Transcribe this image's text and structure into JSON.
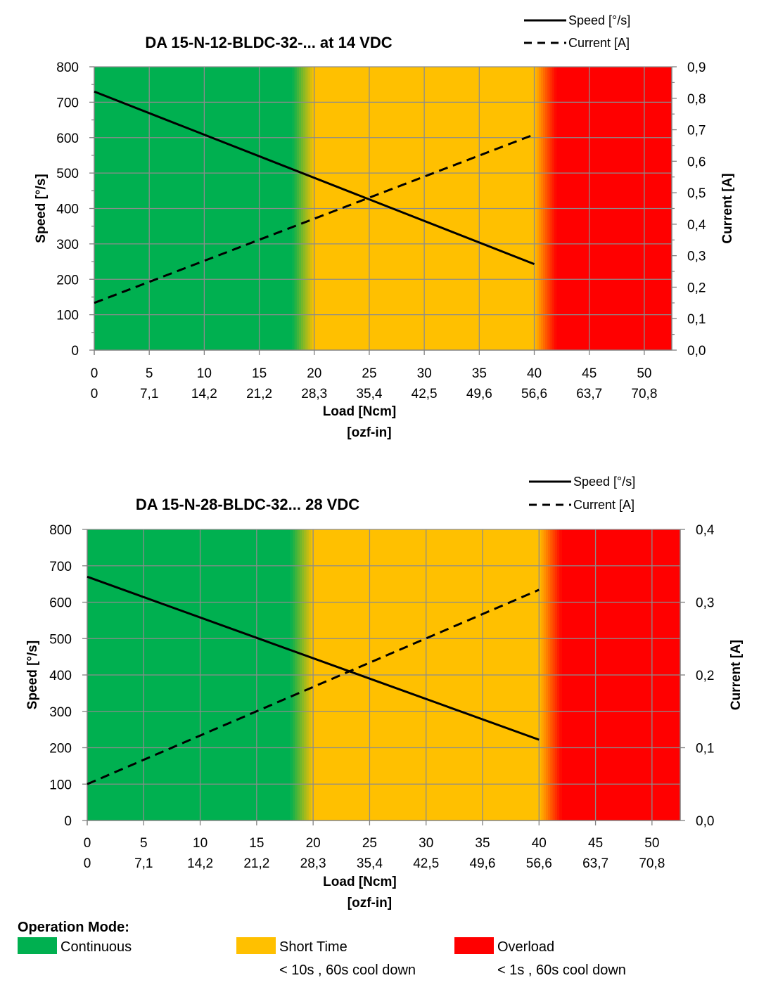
{
  "chart_data": [
    {
      "type": "line",
      "title": "DA 15-N-12-BLDC-32-... at 14 VDC",
      "xlabel": "Load [Ncm]",
      "xlabel2": "[ozf-in]",
      "ylabel": "Speed [°/s]",
      "y2label": "Current [A]",
      "x_ticks": [
        "0",
        "5",
        "10",
        "15",
        "20",
        "25",
        "30",
        "35",
        "40",
        "45",
        "50"
      ],
      "x2_ticks": [
        "0",
        "7,1",
        "14,2",
        "21,2",
        "28,3",
        "35,4",
        "42,5",
        "49,6",
        "56,6",
        "63,7",
        "70,8"
      ],
      "y_ticks": [
        "0",
        "100",
        "200",
        "300",
        "400",
        "500",
        "600",
        "700",
        "800"
      ],
      "y2_ticks": [
        "0,0",
        "0,1",
        "0,2",
        "0,3",
        "0,4",
        "0,5",
        "0,6",
        "0,7",
        "0,8",
        "0,9"
      ],
      "xlim": [
        0,
        52.5
      ],
      "ylim": [
        0,
        800
      ],
      "y2lim": [
        0,
        0.9
      ],
      "y_minor_ticks": true,
      "y2_minor_ticks": true,
      "grid": true,
      "legend_position": "top-right",
      "zones": [
        {
          "mode": "continuous",
          "from": 0,
          "to": 18
        },
        {
          "mode": "short_time",
          "from": 20,
          "to": 40
        },
        {
          "mode": "overload",
          "from": 42,
          "to": 52.5
        }
      ],
      "series": [
        {
          "name": "Speed [°/s]",
          "axis": "left",
          "style": "solid",
          "x": [
            0,
            40
          ],
          "y": [
            730,
            243
          ]
        },
        {
          "name": "Current [A]",
          "axis": "right",
          "style": "dashed",
          "x": [
            0,
            40
          ],
          "y": [
            0.15,
            0.685
          ]
        }
      ]
    },
    {
      "type": "line",
      "title": "DA 15-N-28-BLDC-32... 28 VDC",
      "xlabel": "Load [Ncm]",
      "xlabel2": "[ozf-in]",
      "ylabel": "Speed [°/s]",
      "y2label": "Current [A]",
      "x_ticks": [
        "0",
        "5",
        "10",
        "15",
        "20",
        "25",
        "30",
        "35",
        "40",
        "45",
        "50"
      ],
      "x2_ticks": [
        "0",
        "7,1",
        "14,2",
        "21,2",
        "28,3",
        "35,4",
        "42,5",
        "49,6",
        "56,6",
        "63,7",
        "70,8"
      ],
      "y_ticks": [
        "0",
        "100",
        "200",
        "300",
        "400",
        "500",
        "600",
        "700",
        "800"
      ],
      "y2_ticks": [
        "0,0",
        "0,1",
        "0,2",
        "0,3",
        "0,4"
      ],
      "xlim": [
        0,
        52.5
      ],
      "ylim": [
        0,
        800
      ],
      "y2lim": [
        0,
        0.4
      ],
      "y_minor_ticks": false,
      "y2_minor_ticks": false,
      "grid": true,
      "legend_position": "top-right",
      "zones": [
        {
          "mode": "continuous",
          "from": 0,
          "to": 18
        },
        {
          "mode": "short_time",
          "from": 20,
          "to": 40
        },
        {
          "mode": "overload",
          "from": 42,
          "to": 52.5
        }
      ],
      "series": [
        {
          "name": "Speed [°/s]",
          "axis": "left",
          "style": "solid",
          "x": [
            0,
            40
          ],
          "y": [
            670,
            222
          ]
        },
        {
          "name": "Current [A]",
          "axis": "right",
          "style": "dashed",
          "x": [
            0,
            40
          ],
          "y": [
            0.05,
            0.317
          ]
        }
      ]
    }
  ],
  "operation_mode": {
    "heading": "Operation Mode:",
    "modes": [
      {
        "key": "continuous",
        "label": "Continuous",
        "desc": "",
        "color": "#00b050"
      },
      {
        "key": "short_time",
        "label": "Short Time",
        "desc": "< 10s , 60s cool down",
        "color": "#ffc000"
      },
      {
        "key": "overload",
        "label": "Overload",
        "desc": "< 1s , 60s cool down",
        "color": "#ff0000"
      }
    ]
  }
}
